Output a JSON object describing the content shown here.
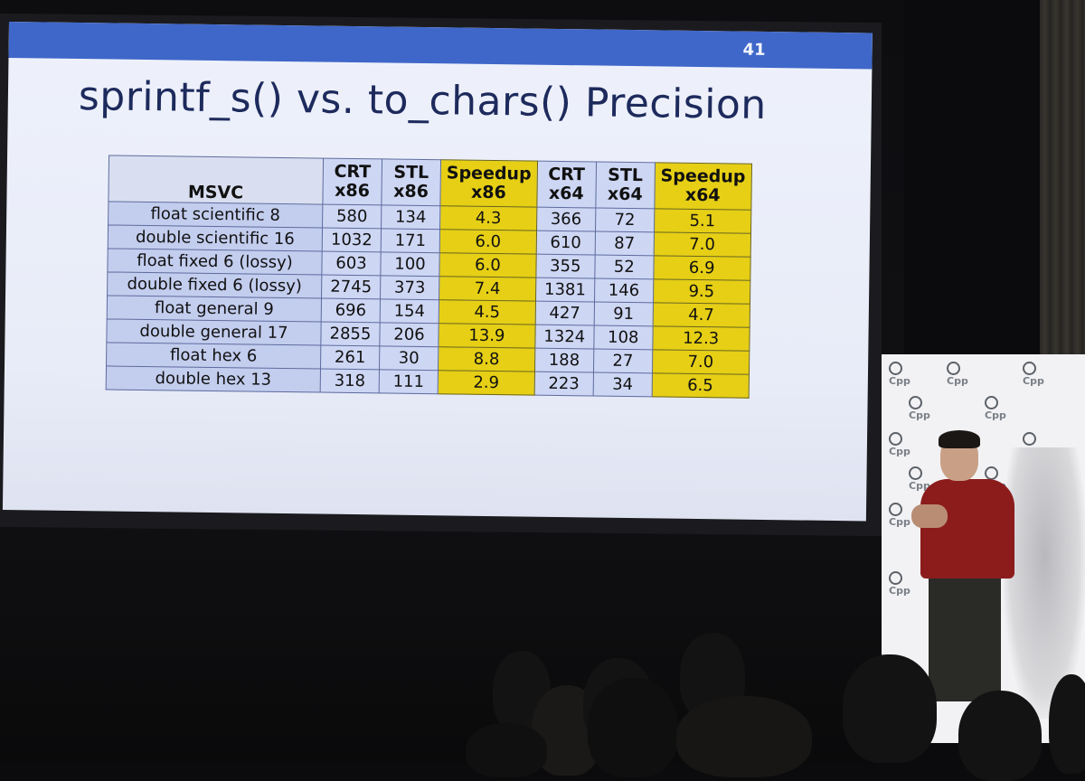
{
  "slide": {
    "number": "41",
    "title": "sprintf_s() vs. to_chars() Precision"
  },
  "table": {
    "corner_label": "MSVC",
    "headers": [
      {
        "line1": "CRT",
        "line2": "x86"
      },
      {
        "line1": "STL",
        "line2": "x86"
      },
      {
        "line1": "Speedup",
        "line2": "x86"
      },
      {
        "line1": "CRT",
        "line2": "x64"
      },
      {
        "line1": "STL",
        "line2": "x64"
      },
      {
        "line1": "Speedup",
        "line2": "x64"
      }
    ],
    "rows": [
      {
        "label": "float scientific 8",
        "crt_x86": "580",
        "stl_x86": "134",
        "speedup_x86": "4.3",
        "crt_x64": "366",
        "stl_x64": "72",
        "speedup_x64": "5.1"
      },
      {
        "label": "double scientific 16",
        "crt_x86": "1032",
        "stl_x86": "171",
        "speedup_x86": "6.0",
        "crt_x64": "610",
        "stl_x64": "87",
        "speedup_x64": "7.0"
      },
      {
        "label": "float fixed 6 (lossy)",
        "crt_x86": "603",
        "stl_x86": "100",
        "speedup_x86": "6.0",
        "crt_x64": "355",
        "stl_x64": "52",
        "speedup_x64": "6.9"
      },
      {
        "label": "double fixed 6 (lossy)",
        "crt_x86": "2745",
        "stl_x86": "373",
        "speedup_x86": "7.4",
        "crt_x64": "1381",
        "stl_x64": "146",
        "speedup_x64": "9.5"
      },
      {
        "label": "float general 9",
        "crt_x86": "696",
        "stl_x86": "154",
        "speedup_x86": "4.5",
        "crt_x64": "427",
        "stl_x64": "91",
        "speedup_x64": "4.7"
      },
      {
        "label": "double general 17",
        "crt_x86": "2855",
        "stl_x86": "206",
        "speedup_x86": "13.9",
        "crt_x64": "1324",
        "stl_x64": "108",
        "speedup_x64": "12.3"
      },
      {
        "label": "float hex 6",
        "crt_x86": "261",
        "stl_x86": "30",
        "speedup_x86": "8.8",
        "crt_x64": "188",
        "stl_x64": "27",
        "speedup_x64": "7.0"
      },
      {
        "label": "double hex 13",
        "crt_x86": "318",
        "stl_x86": "111",
        "speedup_x86": "2.9",
        "crt_x64": "223",
        "stl_x64": "34",
        "speedup_x64": "6.5"
      }
    ]
  },
  "backdrop": {
    "logo_text": "Cpp"
  },
  "colors": {
    "slide_bar": "#3f67c9",
    "title_text": "#1d2a5c",
    "speedup_highlight": "#e6cf15",
    "speaker_shirt": "#8c1c1c"
  }
}
